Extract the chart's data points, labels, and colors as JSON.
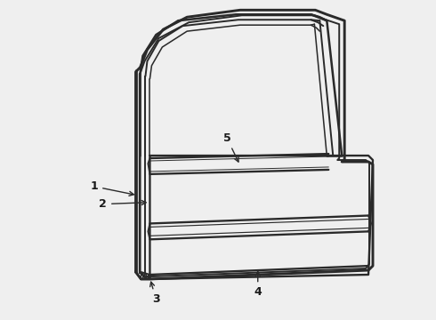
{
  "background_color": "#efefef",
  "line_color": "#2a2a2a",
  "line_width": 1.4,
  "figsize": [
    4.9,
    3.6
  ],
  "dpi": 100,
  "label_fontsize": 9,
  "label_color": "#1a1a1a"
}
